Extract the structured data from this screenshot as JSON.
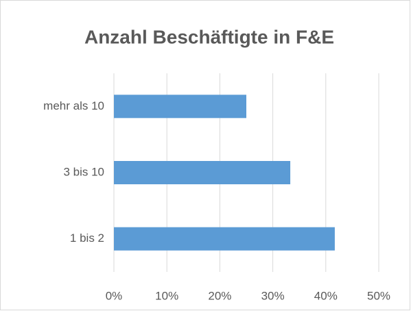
{
  "chart_data": {
    "type": "bar",
    "orientation": "horizontal",
    "title": "Anzahl Beschäftigte in F&E",
    "categories": [
      "1 bis 2",
      "3 bis 10",
      "mehr als 10"
    ],
    "values": [
      41.7,
      33.3,
      25
    ],
    "color": "#5b9bd5",
    "xlim": [
      0,
      50
    ],
    "xticks": [
      {
        "value": 0,
        "label": "0%"
      },
      {
        "value": 10,
        "label": "10%"
      },
      {
        "value": 20,
        "label": "20%"
      },
      {
        "value": 30,
        "label": "30%"
      },
      {
        "value": 40,
        "label": "40%"
      },
      {
        "value": 50,
        "label": "50%"
      }
    ],
    "grid": true
  }
}
